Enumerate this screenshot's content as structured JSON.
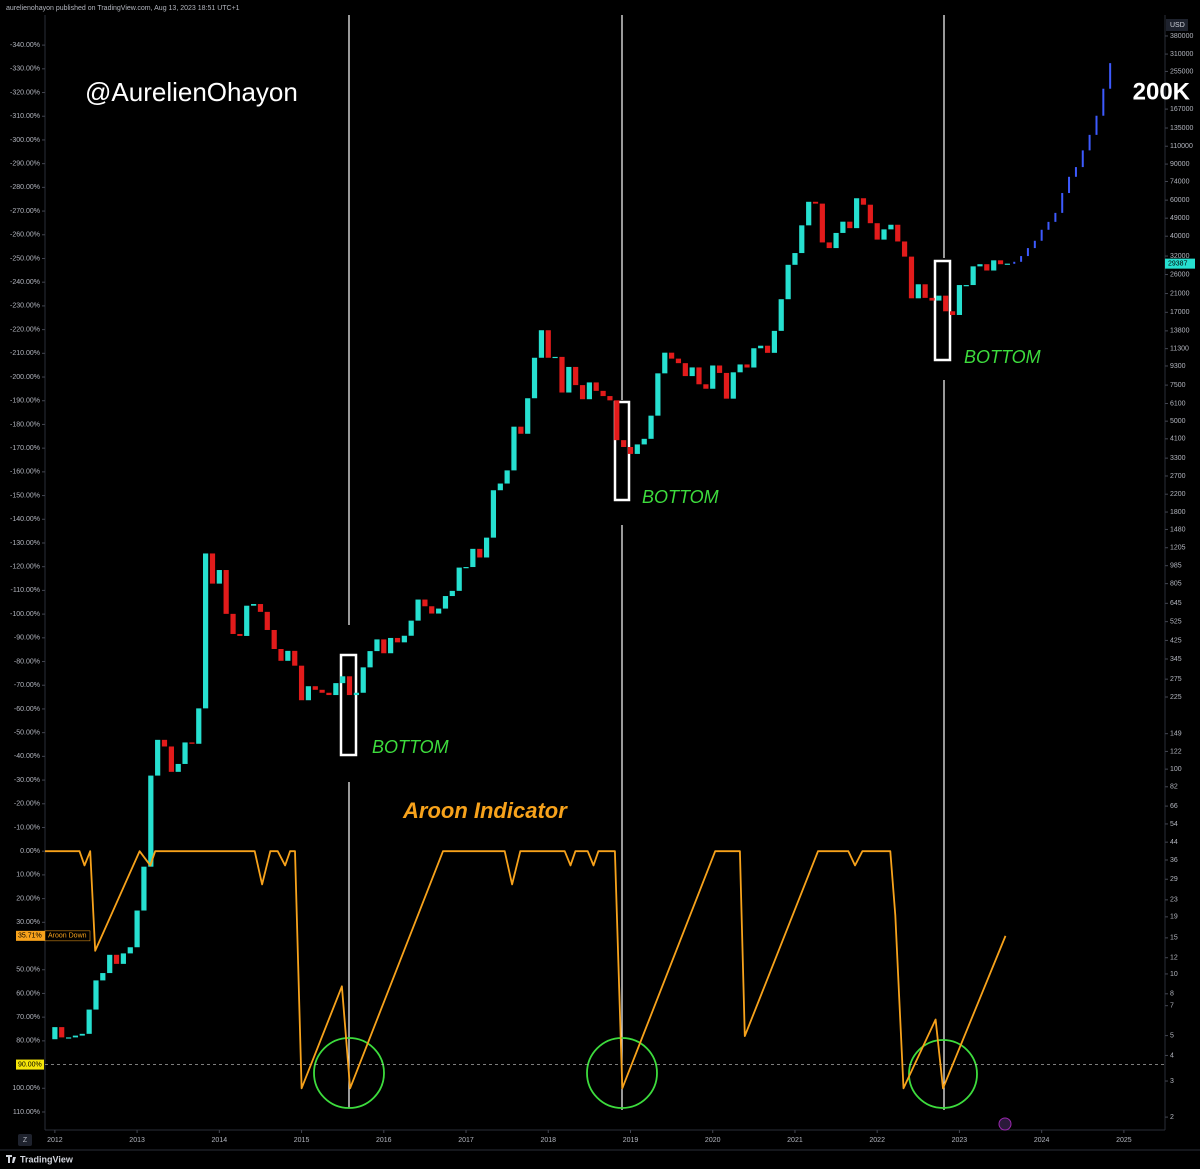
{
  "header": "aurelienohayon published on TradingView.com, Aug 13, 2023 18:51 UTC+1",
  "watermark": "@AurelienOhayon",
  "indicator_title": "Aroon Indicator",
  "annotations": [
    "BOTTOM",
    "BOTTOM",
    "BOTTOM"
  ],
  "currency": "USD",
  "footer": "TradingView",
  "reset_button": "Z",
  "chart_data": {
    "type": "candlestick",
    "xlim": [
      2011.88,
      2025.5
    ],
    "xticks": [
      2012,
      2013,
      2014,
      2015,
      2016,
      2017,
      2018,
      2019,
      2020,
      2021,
      2022,
      2023,
      2024,
      2025
    ],
    "ylim": [
      117.6,
      -352.7
    ],
    "yticks": [
      {
        "value": -340,
        "label": "-340.00%"
      },
      {
        "value": -330,
        "label": "-330.00%"
      },
      {
        "value": -320,
        "label": "-320.00%"
      },
      {
        "value": -310,
        "label": "-310.00%"
      },
      {
        "value": -300,
        "label": "-300.00%"
      },
      {
        "value": -290,
        "label": "-290.00%"
      },
      {
        "value": -280,
        "label": "-280.00%"
      },
      {
        "value": -270,
        "label": "-270.00%"
      },
      {
        "value": -260,
        "label": "-260.00%"
      },
      {
        "value": -250,
        "label": "-250.00%"
      },
      {
        "value": -240,
        "label": "-240.00%"
      },
      {
        "value": -230,
        "label": "-230.00%"
      },
      {
        "value": -220,
        "label": "-220.00%"
      },
      {
        "value": -210,
        "label": "-210.00%"
      },
      {
        "value": -200,
        "label": "-200.00%"
      },
      {
        "value": -190,
        "label": "-190.00%"
      },
      {
        "value": -180,
        "label": "-180.00%"
      },
      {
        "value": -170,
        "label": "-170.00%"
      },
      {
        "value": -160,
        "label": "-160.00%"
      },
      {
        "value": -150,
        "label": "-150.00%"
      },
      {
        "value": -140,
        "label": "-140.00%"
      },
      {
        "value": -130,
        "label": "-130.00%"
      },
      {
        "value": -120,
        "label": "-120.00%"
      },
      {
        "value": -110,
        "label": "-110.00%"
      },
      {
        "value": -100,
        "label": "-100.00%"
      },
      {
        "value": -90,
        "label": "-90.00%"
      },
      {
        "value": -80,
        "label": "-80.00%"
      },
      {
        "value": -70,
        "label": "-70.00%"
      },
      {
        "value": -60,
        "label": "-60.00%"
      },
      {
        "value": -50,
        "label": "-50.00%"
      },
      {
        "value": -40,
        "label": "-40.00%"
      },
      {
        "value": -30,
        "label": "-30.00%"
      },
      {
        "value": -20,
        "label": "-20.00%"
      },
      {
        "value": -10,
        "label": "-10.00%"
      },
      {
        "value": 0,
        "label": "0.00%"
      },
      {
        "value": 10,
        "label": "10.00%"
      },
      {
        "value": 20,
        "label": "20.00%"
      },
      {
        "value": 30,
        "label": "30.00%"
      },
      {
        "value": 50,
        "label": "50.00%"
      },
      {
        "value": 60,
        "label": "60.00%"
      },
      {
        "value": 70,
        "label": "70.00%"
      },
      {
        "value": 80,
        "label": "80.00%"
      },
      {
        "value": 100,
        "label": "100.00%"
      },
      {
        "value": 110,
        "label": "110.00%"
      }
    ],
    "y2lim": [
      1.73,
      481000
    ],
    "y2log": true,
    "y2ticks": [
      380000,
      310000,
      255000,
      167000,
      135000,
      110000,
      90000,
      74000,
      60000,
      49000,
      40000,
      32000,
      26000,
      21000,
      17000,
      13800,
      11300,
      9300,
      7500,
      6100,
      5000,
      4100,
      3300,
      2700,
      2200,
      1800,
      1480,
      1205,
      985,
      805,
      645,
      525,
      425,
      345,
      275,
      225,
      149,
      122,
      100,
      82,
      66,
      54,
      44,
      36,
      29,
      23,
      19,
      15,
      12,
      10,
      8,
      7,
      5,
      4,
      3,
      2
    ],
    "target": {
      "value": 200000,
      "label": "200K"
    },
    "level": {
      "value": 90,
      "label": "90.00%"
    },
    "series": [
      {
        "axis": "y2",
        "up_color": "#26e0d0",
        "down_color": "#e21b1b",
        "x": [
          2012,
          2012.083,
          2012.167,
          2012.25,
          2012.333,
          2012.417,
          2012.5,
          2012.583,
          2012.667,
          2012.75,
          2012.833,
          2012.917,
          2013,
          2013.083,
          2013.167,
          2013.25,
          2013.333,
          2013.417,
          2013.5,
          2013.583,
          2013.667,
          2013.75,
          2013.833,
          2013.917,
          2014,
          2014.083,
          2014.167,
          2014.25,
          2014.333,
          2014.417,
          2014.5,
          2014.583,
          2014.667,
          2014.75,
          2014.833,
          2014.917,
          2015,
          2015.083,
          2015.167,
          2015.25,
          2015.333,
          2015.417,
          2015.5,
          2015.583,
          2015.667,
          2015.75,
          2015.833,
          2015.917,
          2016,
          2016.083,
          2016.167,
          2016.25,
          2016.333,
          2016.417,
          2016.5,
          2016.583,
          2016.667,
          2016.75,
          2016.833,
          2016.917,
          2017,
          2017.083,
          2017.167,
          2017.25,
          2017.333,
          2017.417,
          2017.5,
          2017.583,
          2017.667,
          2017.75,
          2017.833,
          2017.917,
          2018,
          2018.083,
          2018.167,
          2018.25,
          2018.333,
          2018.417,
          2018.5,
          2018.583,
          2018.667,
          2018.75,
          2018.833,
          2018.917,
          2019,
          2019.083,
          2019.167,
          2019.25,
          2019.333,
          2019.417,
          2019.5,
          2019.583,
          2019.667,
          2019.75,
          2019.833,
          2019.917,
          2020,
          2020.083,
          2020.167,
          2020.25,
          2020.333,
          2020.417,
          2020.5,
          2020.583,
          2020.667,
          2020.75,
          2020.833,
          2020.917,
          2021,
          2021.083,
          2021.167,
          2021.25,
          2021.333,
          2021.417,
          2021.5,
          2021.583,
          2021.667,
          2021.75,
          2021.833,
          2021.917,
          2022,
          2022.083,
          2022.167,
          2022.25,
          2022.333,
          2022.417,
          2022.5,
          2022.583,
          2022.667,
          2022.75,
          2022.833,
          2022.917,
          2023,
          2023.083,
          2023.167,
          2023.25,
          2023.333,
          2023.417,
          2023.5,
          2023.583
        ],
        "open": [
          4.8,
          5.5,
          4.9,
          4.9,
          5.0,
          5.1,
          6.7,
          9.3,
          10.1,
          12.4,
          11.2,
          12.6,
          13.5,
          20.4,
          33.4,
          93,
          139,
          129,
          97,
          106,
          135,
          133,
          198,
          1130,
          805,
          938,
          573,
          457,
          447,
          628,
          640,
          586,
          478,
          386,
          338,
          378,
          320,
          217,
          254,
          244,
          236,
          230,
          263,
          284,
          230,
          236,
          314,
          377,
          430,
          368,
          437,
          416,
          448,
          531,
          673,
          624,
          575,
          608,
          700,
          742,
          964,
          970,
          1190,
          1080,
          1350,
          2300,
          2480,
          2875,
          4700,
          4340,
          6470,
          10200,
          13900,
          10200,
          10300,
          6900,
          9200,
          7500,
          6400,
          7730,
          7030,
          6630,
          6320,
          4040,
          3740,
          3460,
          3850,
          4100,
          5320,
          8560,
          10800,
          10100,
          9600,
          8300,
          9150,
          7570,
          7200,
          9350,
          8600,
          6440,
          8660,
          9460,
          9140,
          11350,
          11680,
          10780,
          13800,
          19700,
          29000,
          33100,
          45200,
          58900,
          57700,
          37300,
          35000,
          41500,
          47100,
          43800,
          61300,
          57000,
          46300,
          38500,
          43200,
          45500,
          37700,
          31800,
          19900,
          23300,
          20000,
          19400,
          20500,
          17200,
          16500,
          23100,
          23100,
          28500,
          29200,
          27200,
          30500,
          29200
        ],
        "close": [
          5.5,
          4.9,
          4.9,
          5.0,
          5.1,
          6.7,
          9.3,
          10.1,
          12.4,
          11.2,
          12.6,
          13.5,
          20.4,
          33.4,
          93,
          139,
          129,
          97,
          106,
          135,
          133,
          198,
          1130,
          805,
          938,
          573,
          457,
          447,
          628,
          640,
          586,
          478,
          386,
          338,
          378,
          320,
          217,
          254,
          244,
          236,
          230,
          263,
          284,
          230,
          236,
          314,
          377,
          430,
          368,
          437,
          416,
          448,
          531,
          673,
          624,
          575,
          608,
          700,
          742,
          964,
          970,
          1190,
          1080,
          1350,
          2300,
          2480,
          2875,
          4700,
          4340,
          6470,
          10200,
          13900,
          10200,
          10300,
          6900,
          9200,
          7500,
          6400,
          7730,
          7030,
          6630,
          6320,
          4040,
          3740,
          3460,
          3850,
          4100,
          5320,
          8560,
          10800,
          10100,
          9600,
          8300,
          9150,
          7570,
          7200,
          9350,
          8600,
          6440,
          8660,
          9460,
          9140,
          11350,
          11680,
          10780,
          13800,
          19700,
          29000,
          33100,
          45200,
          58900,
          57700,
          37300,
          35000,
          41500,
          47100,
          43800,
          61300,
          57000,
          46300,
          38500,
          43200,
          45500,
          37700,
          31800,
          19900,
          23300,
          20000,
          19400,
          20500,
          17200,
          16500,
          23100,
          23100,
          28500,
          29200,
          27200,
          30500,
          29200,
          29387
        ]
      },
      {
        "axis": "y2",
        "type": "projection",
        "color": "#3d5afe",
        "x": [
          2023.667,
          2023.75,
          2023.833,
          2023.917,
          2024,
          2024.083,
          2024.167,
          2024.25,
          2024.333,
          2024.417,
          2024.5,
          2024.583,
          2024.667,
          2024.75,
          2024.833
        ],
        "values": [
          30000,
          32000,
          35000,
          38000,
          43000,
          47000,
          52000,
          65000,
          78000,
          87000,
          105000,
          125000,
          155000,
          210000,
          280000
        ]
      },
      {
        "axis": "y",
        "type": "line",
        "name": "Aroon Down",
        "color": "#f7a21b",
        "x": [
          2011.88,
          2012.3,
          2012.36,
          2012.43,
          2012.49,
          2013.03,
          2013.16,
          2013.22,
          2014.43,
          2014.52,
          2014.62,
          2014.71,
          2014.8,
          2014.86,
          2014.92,
          2015,
          2015.49,
          2015.59,
          2016.72,
          2017.47,
          2017.56,
          2017.66,
          2018.2,
          2018.27,
          2018.33,
          2018.48,
          2018.55,
          2018.61,
          2018.81,
          2018.9,
          2020.03,
          2020.33,
          2020.39,
          2021.28,
          2021.65,
          2021.73,
          2021.82,
          2022.16,
          2022.22,
          2022.32,
          2022.71,
          2022.8,
          2023.56
        ],
        "values": [
          0,
          0,
          6,
          0,
          42,
          0,
          6,
          0,
          0,
          14,
          0,
          0,
          6,
          0,
          0,
          100,
          57,
          100,
          0,
          0,
          14,
          0,
          0,
          6,
          0,
          0,
          6,
          0,
          0,
          100,
          0,
          0,
          78,
          0,
          0,
          6,
          0,
          0,
          27,
          100,
          71,
          100,
          35.71
        ],
        "value_labels": [
          null,
          null,
          null,
          null,
          null,
          null,
          null,
          null,
          null,
          null,
          null,
          null,
          null,
          null,
          null,
          null,
          null,
          null,
          null,
          null,
          null,
          null,
          null,
          null,
          null,
          null,
          null,
          null,
          null,
          null,
          null,
          null,
          null,
          null,
          null,
          null,
          null,
          null,
          null,
          null,
          null,
          null,
          "35.71%"
        ]
      }
    ]
  }
}
